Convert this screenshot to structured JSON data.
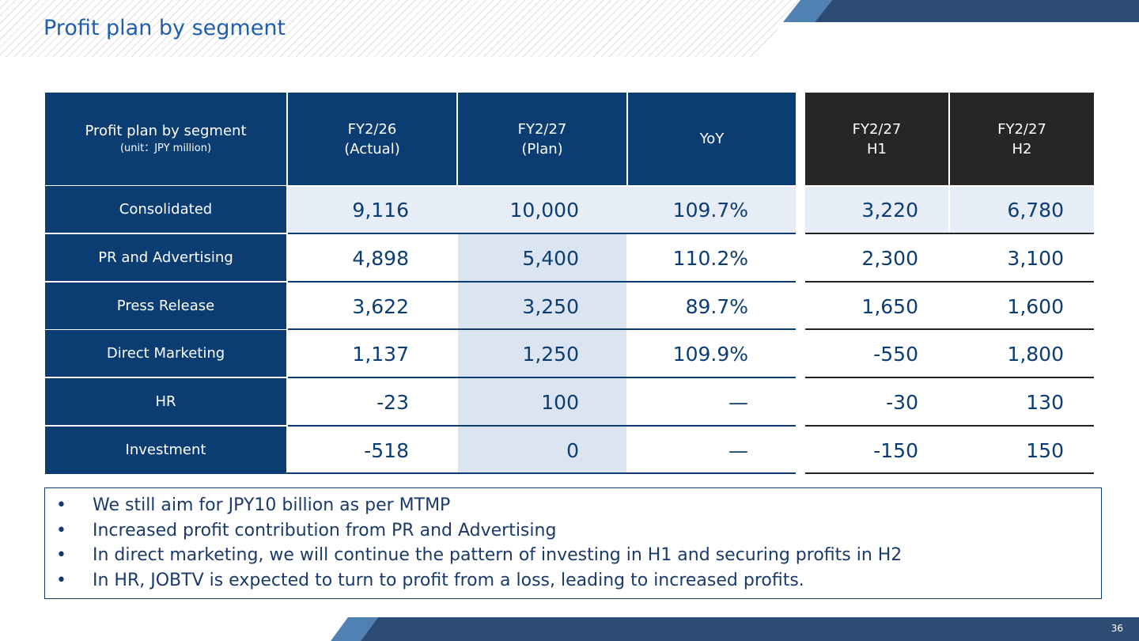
{
  "title": "Profit plan by segment",
  "table": {
    "corner_title": "Profit plan by segment",
    "corner_unit": "(unit：JPY million)",
    "columns": [
      {
        "line1": "FY2/26",
        "line2": "(Actual)"
      },
      {
        "line1": "FY2/27",
        "line2": "(Plan)"
      },
      {
        "line1": "YoY",
        "line2": ""
      },
      {
        "line1": "FY2/27",
        "line2": "H1"
      },
      {
        "line1": "FY2/27",
        "line2": "H2"
      }
    ],
    "rows": [
      {
        "label": "Consolidated",
        "values": [
          "9,116",
          "10,000",
          "109.7%",
          "3,220",
          "6,780"
        ]
      },
      {
        "label": "PR and Advertising",
        "values": [
          "4,898",
          "5,400",
          "110.2%",
          "2,300",
          "3,100"
        ]
      },
      {
        "label": "Press Release",
        "values": [
          "3,622",
          "3,250",
          "89.7%",
          "1,650",
          "1,600"
        ]
      },
      {
        "label": "Direct Marketing",
        "values": [
          "1,137",
          "1,250",
          "109.9%",
          "-550",
          "1,800"
        ]
      },
      {
        "label": "HR",
        "values": [
          "-23",
          "100",
          "—",
          "-30",
          "130"
        ]
      },
      {
        "label": "Investment",
        "values": [
          "-518",
          "0",
          "—",
          "-150",
          "150"
        ]
      }
    ]
  },
  "notes": {
    "bullet": "•",
    "items": [
      "We still aim for JPY10 billion as per MTMP",
      "Increased profit contribution from PR and Advertising",
      "In direct marketing, we will continue the pattern of investing in H1 and securing profits in H2",
      "In HR, JOBTV is expected to turn to profit from a loss, leading to increased profits."
    ]
  },
  "page_number": "36",
  "colors": {
    "navy": "#0b3d72",
    "dark_header": "#262626",
    "consolidated_row": "#e6edf7",
    "plan_highlight": "#dbe5f1",
    "title_blue": "#1f5fae",
    "accent_blue": "#4f81b3"
  }
}
